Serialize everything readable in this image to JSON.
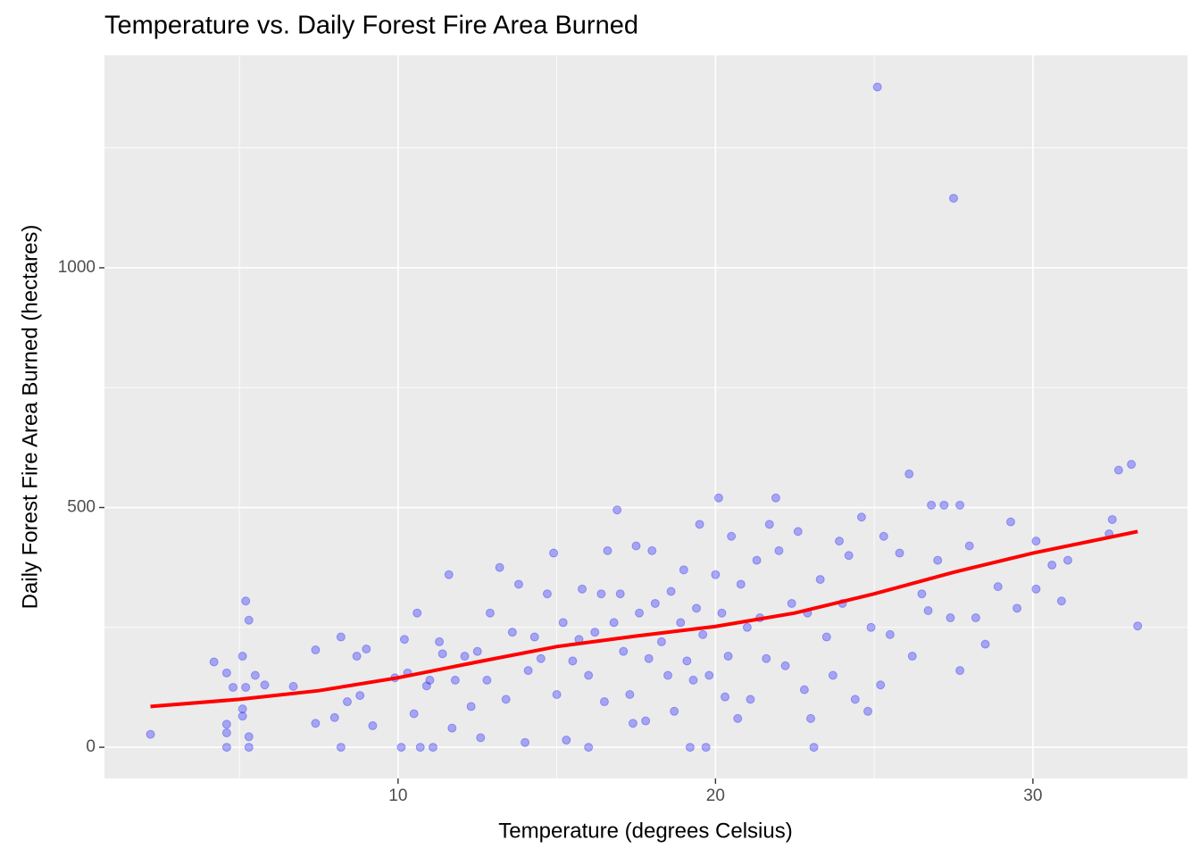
{
  "chart_data": {
    "type": "scatter",
    "title": "Temperature vs. Daily Forest Fire Area Burned",
    "x_label": "Temperature (degrees Celsius)",
    "y_label": "Daily Forest Fire Area Burned (hectares)",
    "xlim": [
      0.75,
      34.87
    ],
    "ylim": [
      -65,
      1443
    ],
    "xticks": [
      10,
      20,
      30
    ],
    "yticks": [
      0,
      500,
      1000
    ],
    "x_minor_grid": [
      5,
      15,
      25
    ],
    "y_minor_grid": [
      250,
      750,
      1250
    ],
    "grid": true,
    "series": [
      {
        "name": "observations",
        "color": "#0000ff",
        "opacity": 0.3,
        "x": [
          2.2,
          4.2,
          4.6,
          4.6,
          4.6,
          4.6,
          4.8,
          5.1,
          5.1,
          5.1,
          5.2,
          5.2,
          5.3,
          5.3,
          5.3,
          5.5,
          5.8,
          6.7,
          7.4,
          7.4,
          8.0,
          8.2,
          8.2,
          8.4,
          8.7,
          8.8,
          9.0,
          9.2,
          9.9,
          10.1,
          10.2,
          10.3,
          10.5,
          10.6,
          10.7,
          10.9,
          11.0,
          11.1,
          11.3,
          11.4,
          11.6,
          11.7,
          11.8,
          12.1,
          12.3,
          12.5,
          12.6,
          12.8,
          12.9,
          13.2,
          13.4,
          13.6,
          13.8,
          14.0,
          14.1,
          14.3,
          14.5,
          14.7,
          14.9,
          15.0,
          15.2,
          15.3,
          15.5,
          15.7,
          15.8,
          16.0,
          16.0,
          16.2,
          16.4,
          16.5,
          16.6,
          16.8,
          16.9,
          17.0,
          17.1,
          17.3,
          17.4,
          17.5,
          17.6,
          17.8,
          17.9,
          18.0,
          18.1,
          18.3,
          18.5,
          18.6,
          18.7,
          18.9,
          19.0,
          19.1,
          19.2,
          19.3,
          19.4,
          19.5,
          19.6,
          19.7,
          19.8,
          20.0,
          20.1,
          20.2,
          20.3,
          20.4,
          20.5,
          20.7,
          20.8,
          21.0,
          21.1,
          21.3,
          21.4,
          21.6,
          21.7,
          21.9,
          22.0,
          22.2,
          22.4,
          22.6,
          22.8,
          22.9,
          23.0,
          23.1,
          23.3,
          23.5,
          23.7,
          23.9,
          24.0,
          24.2,
          24.4,
          24.6,
          24.8,
          24.9,
          25.2,
          25.3,
          25.5,
          25.8,
          26.1,
          26.2,
          26.5,
          26.7,
          26.8,
          27.0,
          27.2,
          27.4,
          27.7,
          27.7,
          28.0,
          28.2,
          28.5,
          28.9,
          29.3,
          29.5,
          30.1,
          30.1,
          30.6,
          30.9,
          31.1,
          32.4,
          32.5,
          32.7,
          33.1,
          33.3,
          25.1,
          27.5
        ],
        "values": [
          27,
          178,
          155,
          0,
          48,
          30,
          125,
          190,
          80,
          65,
          125,
          305,
          265,
          22,
          0,
          150,
          130,
          127,
          50,
          203,
          62,
          230,
          0,
          95,
          190,
          108,
          205,
          45,
          145,
          0,
          225,
          155,
          70,
          280,
          0,
          128,
          140,
          0,
          220,
          195,
          360,
          40,
          140,
          190,
          85,
          200,
          20,
          140,
          280,
          375,
          100,
          240,
          340,
          10,
          160,
          230,
          185,
          320,
          405,
          110,
          260,
          15,
          180,
          225,
          330,
          0,
          150,
          240,
          320,
          95,
          410,
          260,
          495,
          320,
          200,
          110,
          50,
          420,
          280,
          55,
          185,
          410,
          300,
          220,
          150,
          325,
          75,
          260,
          370,
          180,
          0,
          140,
          290,
          465,
          235,
          0,
          150,
          360,
          520,
          280,
          105,
          190,
          440,
          60,
          340,
          250,
          100,
          390,
          270,
          185,
          465,
          520,
          410,
          170,
          300,
          450,
          120,
          280,
          60,
          0,
          350,
          230,
          150,
          430,
          300,
          400,
          100,
          480,
          75,
          250,
          130,
          440,
          235,
          405,
          570,
          190,
          320,
          285,
          505,
          390,
          505,
          270,
          160,
          505,
          420,
          270,
          215,
          335,
          470,
          290,
          430,
          330,
          380,
          305,
          390,
          445,
          475,
          578,
          590,
          253,
          1377,
          1145
        ]
      },
      {
        "name": "smooth",
        "type": "line",
        "color": "#ff0000",
        "x": [
          2.2,
          5,
          7.5,
          10,
          12.5,
          15,
          17.5,
          20,
          22.5,
          25,
          27.5,
          30,
          33.3
        ],
        "values": [
          85,
          100,
          118,
          145,
          178,
          210,
          232,
          252,
          280,
          320,
          365,
          405,
          450
        ]
      }
    ]
  }
}
